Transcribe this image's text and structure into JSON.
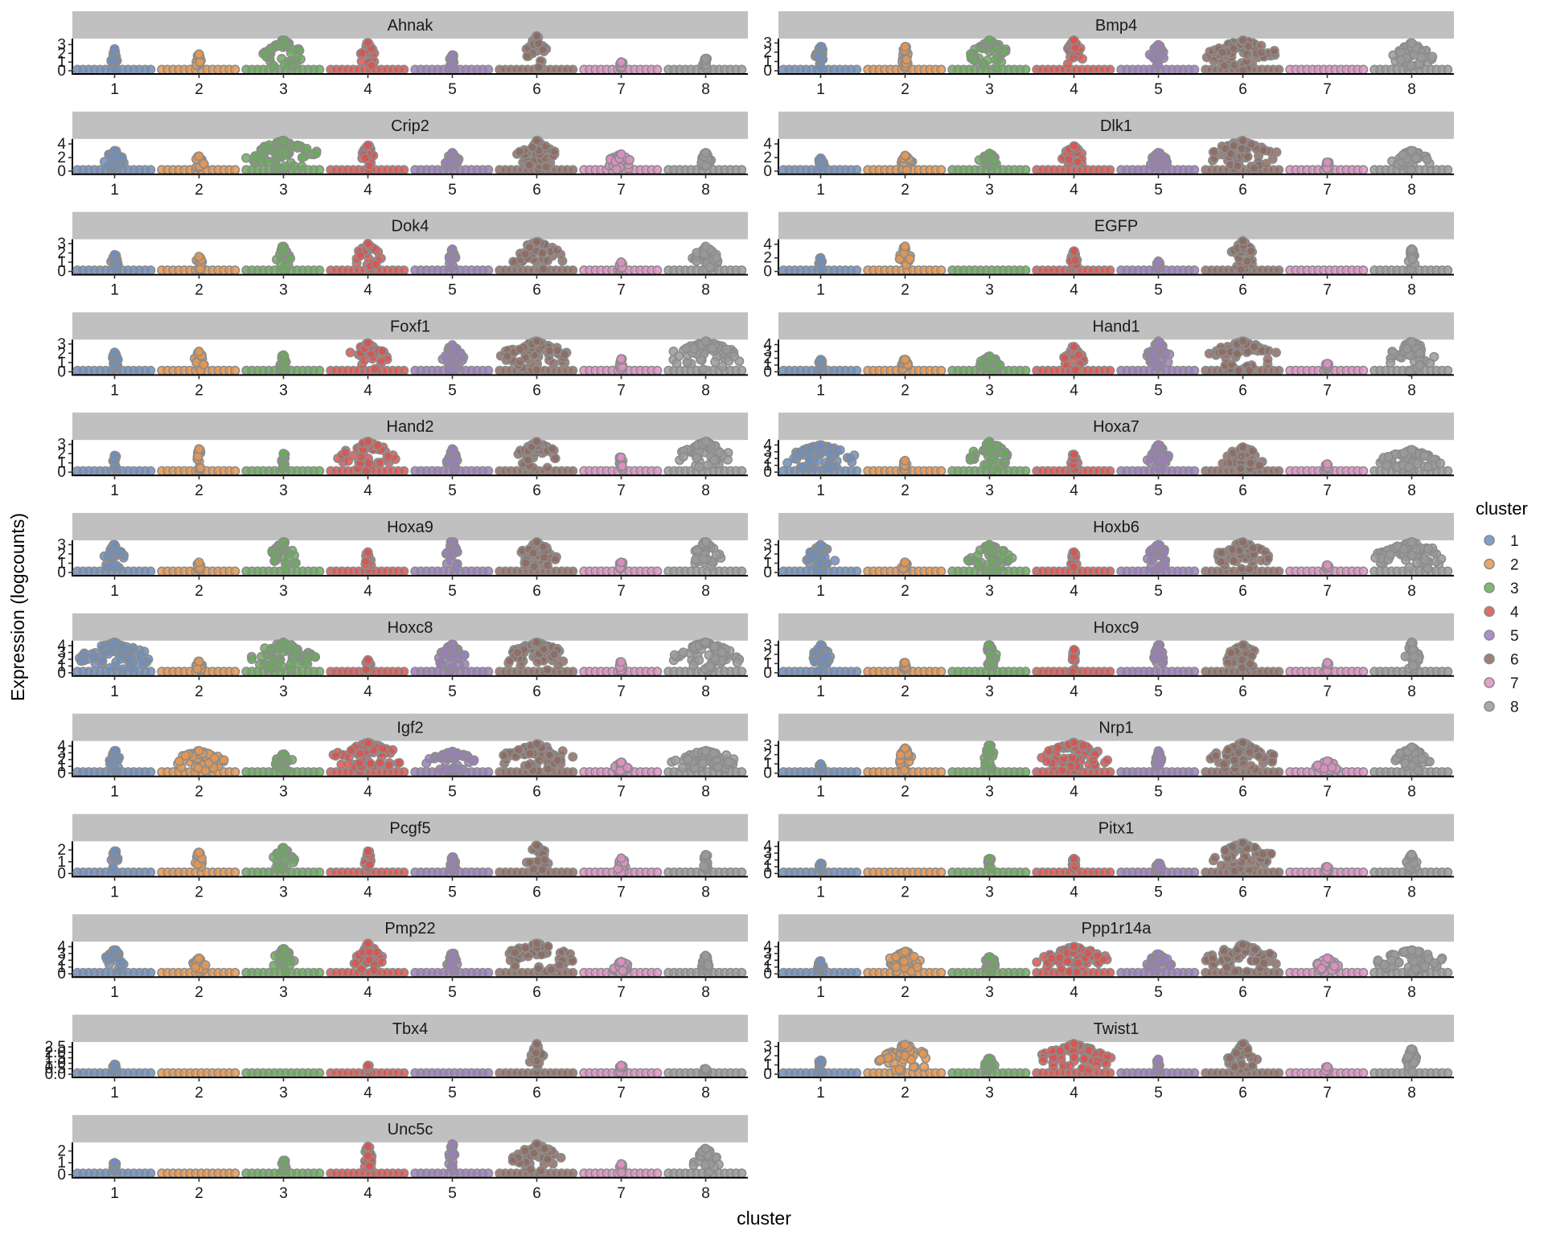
{
  "chart_data": {
    "type": "scatter",
    "subtype": "faceted beeswarm",
    "xlabel": "cluster",
    "ylabel": "Expression (logcounts)",
    "categories": [
      "1",
      "2",
      "3",
      "4",
      "5",
      "6",
      "7",
      "8"
    ],
    "legend": {
      "title": "cluster",
      "position": "right",
      "entries": [
        {
          "label": "1",
          "color": "#6c8ebf"
        },
        {
          "label": "2",
          "color": "#e8964f"
        },
        {
          "label": "3",
          "color": "#6aaa5c"
        },
        {
          "label": "4",
          "color": "#d9534f"
        },
        {
          "label": "5",
          "color": "#9b7cbd"
        },
        {
          "label": "6",
          "color": "#8e6b61"
        },
        {
          "label": "7",
          "color": "#df8fc4"
        },
        {
          "label": "8",
          "color": "#9a9a9a"
        }
      ]
    },
    "grid": false,
    "facets": [
      {
        "gene": "Ahnak",
        "yticks": [
          "0",
          "1",
          "2",
          "3"
        ],
        "ylim": [
          0,
          3.5
        ],
        "max": [
          2.5,
          1.9,
          3.5,
          3.2,
          1.8,
          4.0,
          1.0,
          1.4
        ],
        "spread": [
          0.1,
          0.1,
          0.55,
          0.2,
          0.1,
          0.3,
          0.05,
          0.1
        ]
      },
      {
        "gene": "Bmp4",
        "yticks": [
          "0",
          "1",
          "2",
          "3"
        ],
        "ylim": [
          0,
          3.3
        ],
        "max": [
          2.6,
          2.6,
          3.3,
          3.3,
          2.8,
          3.3,
          0.1,
          3.0
        ],
        "spread": [
          0.15,
          0.1,
          0.55,
          0.25,
          0.25,
          1.0,
          0.0,
          0.55
        ]
      },
      {
        "gene": "Crip2",
        "yticks": [
          "0",
          "2",
          "4"
        ],
        "ylim": [
          0,
          4.5
        ],
        "max": [
          3.0,
          2.2,
          4.5,
          3.8,
          2.7,
          4.5,
          2.5,
          2.7
        ],
        "spread": [
          0.3,
          0.15,
          1.0,
          0.2,
          0.2,
          0.55,
          0.4,
          0.15
        ]
      },
      {
        "gene": "Dlk1",
        "yticks": [
          "0",
          "2",
          "4"
        ],
        "ylim": [
          0,
          4.5
        ],
        "max": [
          1.9,
          2.3,
          2.6,
          3.7,
          2.7,
          4.5,
          1.3,
          3.0
        ],
        "spread": [
          0.1,
          0.2,
          0.3,
          0.4,
          0.25,
          1.0,
          0.05,
          0.55
        ]
      },
      {
        "gene": "Dok4",
        "yticks": [
          "0",
          "1",
          "2",
          "3"
        ],
        "ylim": [
          0,
          3.3
        ],
        "max": [
          1.8,
          1.6,
          2.7,
          3.0,
          2.4,
          3.2,
          1.0,
          2.7
        ],
        "spread": [
          0.1,
          0.1,
          0.2,
          0.35,
          0.1,
          0.75,
          0.05,
          0.35
        ]
      },
      {
        "gene": "EGFP",
        "yticks": [
          "0",
          "2",
          "4"
        ],
        "ylim": [
          0,
          4.5
        ],
        "max": [
          2.0,
          3.7,
          0.1,
          3.0,
          1.5,
          4.5,
          0.1,
          3.3
        ],
        "spread": [
          0.05,
          0.15,
          0.0,
          0.1,
          0.05,
          0.35,
          0.0,
          0.1
        ]
      },
      {
        "gene": "Foxf1",
        "yticks": [
          "0",
          "1",
          "2",
          "3"
        ],
        "ylim": [
          0,
          3.3
        ],
        "max": [
          2.1,
          2.2,
          1.8,
          3.1,
          2.9,
          3.3,
          1.4,
          3.3
        ],
        "spread": [
          0.1,
          0.15,
          0.1,
          0.55,
          0.3,
          1.0,
          0.05,
          1.0
        ]
      },
      {
        "gene": "Hand1",
        "yticks": [
          "0",
          "1",
          "2",
          "3",
          "4"
        ],
        "ylim": [
          0,
          4.5
        ],
        "max": [
          1.8,
          1.8,
          2.3,
          3.7,
          4.5,
          4.5,
          1.2,
          4.4
        ],
        "spread": [
          0.05,
          0.1,
          0.3,
          0.3,
          0.3,
          1.0,
          0.05,
          0.7
        ]
      },
      {
        "gene": "Hand2",
        "yticks": [
          "0",
          "1",
          "2",
          "3"
        ],
        "ylim": [
          0,
          3.3
        ],
        "max": [
          1.8,
          2.5,
          2.0,
          3.3,
          2.5,
          3.3,
          1.6,
          3.3
        ],
        "spread": [
          0.05,
          0.05,
          0.05,
          0.8,
          0.15,
          0.6,
          0.05,
          0.75
        ]
      },
      {
        "gene": "Hoxa7",
        "yticks": [
          "0",
          "1",
          "2",
          "3",
          "4"
        ],
        "ylim": [
          0,
          4.5
        ],
        "max": [
          4.0,
          1.7,
          4.5,
          2.6,
          4.0,
          3.7,
          1.2,
          3.3
        ],
        "spread": [
          1.0,
          0.05,
          0.55,
          0.1,
          0.3,
          0.6,
          0.05,
          0.85
        ]
      },
      {
        "gene": "Hoxa9",
        "yticks": [
          "0",
          "1",
          "2",
          "3"
        ],
        "ylim": [
          0,
          3.3
        ],
        "max": [
          3.0,
          1.1,
          3.3,
          2.2,
          3.3,
          3.3,
          1.1,
          3.3
        ],
        "spread": [
          0.3,
          0.05,
          0.4,
          0.1,
          0.2,
          0.55,
          0.05,
          0.4
        ]
      },
      {
        "gene": "Hoxb6",
        "yticks": [
          "0",
          "1",
          "2",
          "3"
        ],
        "ylim": [
          0,
          3.3
        ],
        "max": [
          3.0,
          1.1,
          3.0,
          2.2,
          3.0,
          3.3,
          0.8,
          3.3
        ],
        "spread": [
          0.4,
          0.1,
          0.6,
          0.1,
          0.35,
          0.75,
          0.05,
          1.0
        ]
      },
      {
        "gene": "Hoxc8",
        "yticks": [
          "0",
          "1",
          "2",
          "3",
          "4"
        ],
        "ylim": [
          0,
          4.5
        ],
        "max": [
          4.5,
          1.7,
          4.5,
          1.9,
          4.2,
          4.5,
          1.6,
          4.5
        ],
        "spread": [
          1.0,
          0.1,
          0.9,
          0.1,
          0.4,
          0.9,
          0.05,
          0.95
        ]
      },
      {
        "gene": "Hoxc9",
        "yticks": [
          "0",
          "1",
          "2",
          "3"
        ],
        "ylim": [
          0,
          3.3
        ],
        "max": [
          3.0,
          1.1,
          3.0,
          2.5,
          3.0,
          3.0,
          1.1,
          3.3
        ],
        "spread": [
          0.3,
          0.05,
          0.2,
          0.05,
          0.15,
          0.5,
          0.05,
          0.2
        ]
      },
      {
        "gene": "Igf2",
        "yticks": [
          "0",
          "1",
          "2",
          "3",
          "4"
        ],
        "ylim": [
          0,
          4.5
        ],
        "max": [
          3.3,
          3.3,
          2.8,
          4.5,
          3.2,
          4.3,
          1.6,
          3.3
        ],
        "spread": [
          0.15,
          0.7,
          0.3,
          1.0,
          0.7,
          1.0,
          0.2,
          1.0
        ]
      },
      {
        "gene": "Nrp1",
        "yticks": [
          "0",
          "1",
          "2",
          "3"
        ],
        "ylim": [
          0,
          3.3
        ],
        "max": [
          1.0,
          2.7,
          3.0,
          3.3,
          2.4,
          3.3,
          1.3,
          2.8
        ],
        "spread": [
          0.05,
          0.2,
          0.15,
          0.9,
          0.1,
          0.85,
          0.3,
          0.5
        ]
      },
      {
        "gene": "Pcgf5",
        "yticks": [
          "0",
          "1",
          "2"
        ],
        "ylim": [
          0,
          2.6
        ],
        "max": [
          1.9,
          1.8,
          2.2,
          1.9,
          1.4,
          2.4,
          1.3,
          1.6
        ],
        "spread": [
          0.1,
          0.1,
          0.3,
          0.1,
          0.1,
          0.35,
          0.2,
          0.05
        ]
      },
      {
        "gene": "Pitx1",
        "yticks": [
          "0",
          "1",
          "2",
          "3",
          "4"
        ],
        "ylim": [
          0,
          4.5
        ],
        "max": [
          1.5,
          0.1,
          2.2,
          2.2,
          1.5,
          4.5,
          1.0,
          2.8
        ],
        "spread": [
          0.05,
          0.0,
          0.05,
          0.05,
          0.1,
          0.85,
          0.05,
          0.15
        ]
      },
      {
        "gene": "Pmp22",
        "yticks": [
          "0",
          "1",
          "2",
          "3",
          "4"
        ],
        "ylim": [
          0,
          4.5
        ],
        "max": [
          3.5,
          2.3,
          3.7,
          4.5,
          3.0,
          4.5,
          1.8,
          2.7
        ],
        "spread": [
          0.3,
          0.2,
          0.3,
          0.4,
          0.15,
          1.0,
          0.25,
          0.1
        ]
      },
      {
        "gene": "Ppp1r14a",
        "yticks": [
          "0",
          "1",
          "2",
          "3",
          "4"
        ],
        "ylim": [
          0,
          4.5
        ],
        "max": [
          1.9,
          3.3,
          2.5,
          4.0,
          2.9,
          4.3,
          2.3,
          3.5
        ],
        "spread": [
          0.1,
          0.6,
          0.25,
          1.0,
          0.35,
          1.0,
          0.3,
          1.0
        ]
      },
      {
        "gene": "Tbx4",
        "yticks": [
          "0.0",
          "0.5",
          "1.0",
          "1.5",
          "2.0",
          "2.5"
        ],
        "ylim": [
          0,
          2.8
        ],
        "max": [
          0.9,
          0.1,
          0.1,
          0.8,
          0.1,
          2.8,
          0.8,
          0.5
        ],
        "spread": [
          0.05,
          0.0,
          0.0,
          0.05,
          0.0,
          0.2,
          0.05,
          0.05
        ]
      },
      {
        "gene": "Twist1",
        "yticks": [
          "0",
          "1",
          "2",
          "3"
        ],
        "ylim": [
          0,
          3.3
        ],
        "max": [
          1.5,
          3.2,
          1.7,
          3.3,
          1.6,
          3.3,
          0.8,
          2.7
        ],
        "spread": [
          0.05,
          0.7,
          0.15,
          1.0,
          0.05,
          0.4,
          0.05,
          0.15
        ]
      },
      {
        "gene": "Unc5c",
        "yticks": [
          "0",
          "1",
          "2"
        ],
        "ylim": [
          0,
          2.6
        ],
        "max": [
          1.0,
          0.1,
          1.2,
          2.4,
          2.6,
          2.6,
          0.9,
          2.2
        ],
        "spread": [
          0.05,
          0.0,
          0.1,
          0.15,
          0.1,
          0.65,
          0.05,
          0.4
        ]
      }
    ]
  }
}
